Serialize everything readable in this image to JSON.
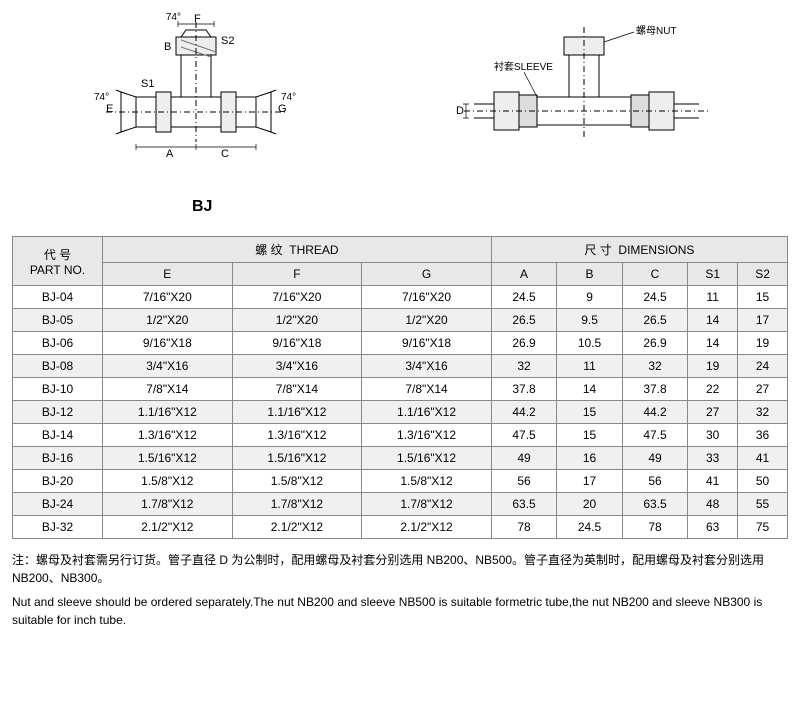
{
  "diagram_left": {
    "angles": [
      "74°",
      "74°",
      "74°"
    ],
    "dim_labels": [
      "F",
      "B",
      "S2",
      "S1",
      "E",
      "G",
      "A",
      "C"
    ],
    "stroke": "#000000",
    "hatch_color": "#555555"
  },
  "diagram_right": {
    "labels": {
      "nut": "螺母NUT",
      "sleeve": "衬套SLEEVE"
    },
    "dim_label": "D",
    "stroke": "#000000"
  },
  "model_label": "BJ",
  "table": {
    "header_bg": "#e8e8e8",
    "alt_row_bg": "#f0f0f0",
    "border_color": "#888888",
    "group_headers": {
      "partno_cn": "代 号",
      "partno_en": "PART NO.",
      "thread_cn": "螺 纹",
      "thread_en": "THREAD",
      "dims_cn": "尺 寸",
      "dims_en": "DIMENSIONS"
    },
    "columns": [
      "E",
      "F",
      "G",
      "A",
      "B",
      "C",
      "S1",
      "S2"
    ],
    "rows": [
      {
        "pn": "BJ-04",
        "E": "7/16\"X20",
        "F": "7/16\"X20",
        "G": "7/16\"X20",
        "A": "24.5",
        "B": "9",
        "C": "24.5",
        "S1": "11",
        "S2": "15"
      },
      {
        "pn": "BJ-05",
        "E": "1/2\"X20",
        "F": "1/2\"X20",
        "G": "1/2\"X20",
        "A": "26.5",
        "B": "9.5",
        "C": "26.5",
        "S1": "14",
        "S2": "17"
      },
      {
        "pn": "BJ-06",
        "E": "9/16\"X18",
        "F": "9/16\"X18",
        "G": "9/16\"X18",
        "A": "26.9",
        "B": "10.5",
        "C": "26.9",
        "S1": "14",
        "S2": "19"
      },
      {
        "pn": "BJ-08",
        "E": "3/4\"X16",
        "F": "3/4\"X16",
        "G": "3/4\"X16",
        "A": "32",
        "B": "11",
        "C": "32",
        "S1": "19",
        "S2": "24"
      },
      {
        "pn": "BJ-10",
        "E": "7/8\"X14",
        "F": "7/8\"X14",
        "G": "7/8\"X14",
        "A": "37.8",
        "B": "14",
        "C": "37.8",
        "S1": "22",
        "S2": "27"
      },
      {
        "pn": "BJ-12",
        "E": "1.1/16\"X12",
        "F": "1.1/16\"X12",
        "G": "1.1/16\"X12",
        "A": "44.2",
        "B": "15",
        "C": "44.2",
        "S1": "27",
        "S2": "32"
      },
      {
        "pn": "BJ-14",
        "E": "1.3/16\"X12",
        "F": "1.3/16\"X12",
        "G": "1.3/16\"X12",
        "A": "47.5",
        "B": "15",
        "C": "47.5",
        "S1": "30",
        "S2": "36"
      },
      {
        "pn": "BJ-16",
        "E": "1.5/16\"X12",
        "F": "1.5/16\"X12",
        "G": "1.5/16\"X12",
        "A": "49",
        "B": "16",
        "C": "49",
        "S1": "33",
        "S2": "41"
      },
      {
        "pn": "BJ-20",
        "E": "1.5/8\"X12",
        "F": "1.5/8\"X12",
        "G": "1.5/8\"X12",
        "A": "56",
        "B": "17",
        "C": "56",
        "S1": "41",
        "S2": "50"
      },
      {
        "pn": "BJ-24",
        "E": "1.7/8\"X12",
        "F": "1.7/8\"X12",
        "G": "1.7/8\"X12",
        "A": "63.5",
        "B": "20",
        "C": "63.5",
        "S1": "48",
        "S2": "55"
      },
      {
        "pn": "BJ-32",
        "E": "2.1/2\"X12",
        "F": "2.1/2\"X12",
        "G": "2.1/2\"X12",
        "A": "78",
        "B": "24.5",
        "C": "78",
        "S1": "63",
        "S2": "75"
      }
    ]
  },
  "notes": {
    "cn": "注：螺母及衬套需另行订货。管子直径 D 为公制时，配用螺母及衬套分别选用 NB200、NB500。管子直径为英制时，配用螺母及衬套分别选用 NB200、NB300。",
    "en": " Nut and sleeve should be ordered separately.The nut NB200 and sleeve NB500 is suitable formetric tube,the nut NB200 and sleeve NB300 is suitable for inch tube."
  }
}
